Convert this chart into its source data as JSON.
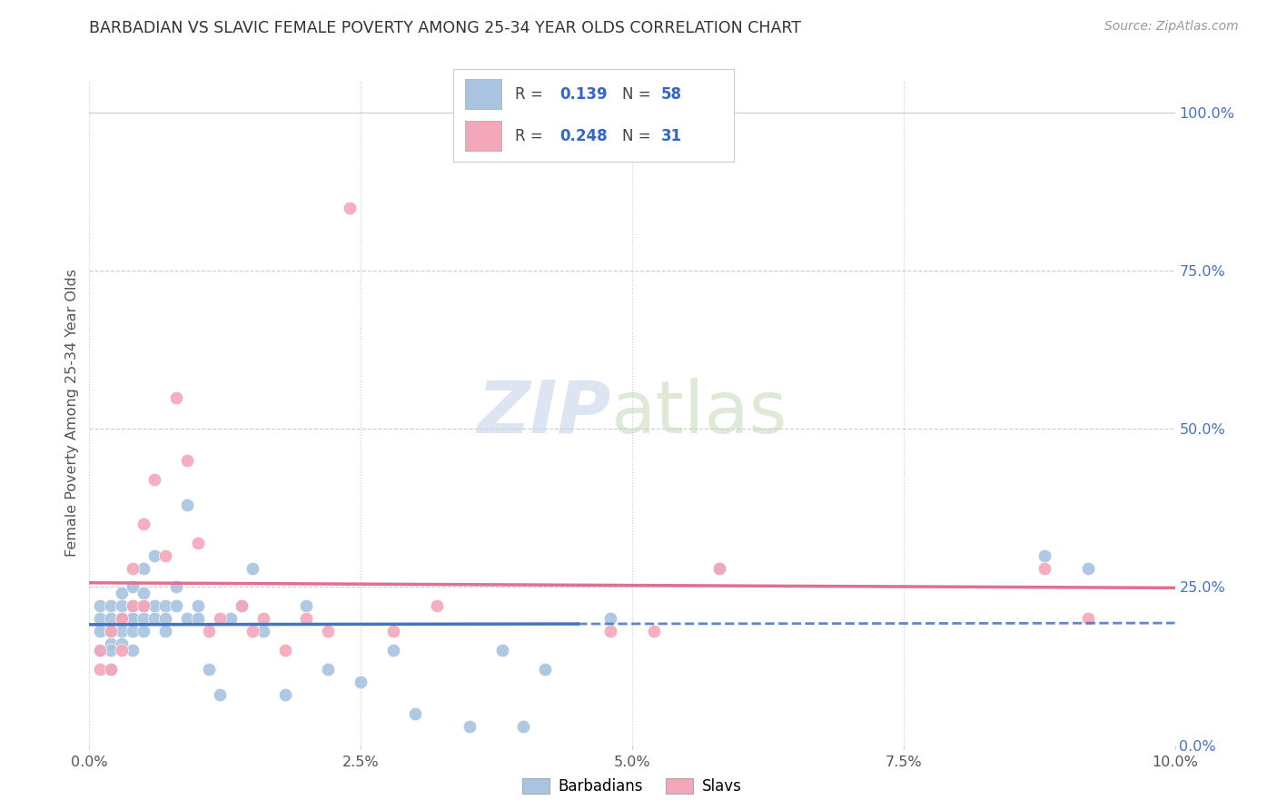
{
  "title": "BARBADIAN VS SLAVIC FEMALE POVERTY AMONG 25-34 YEAR OLDS CORRELATION CHART",
  "source": "Source: ZipAtlas.com",
  "ylabel": "Female Poverty Among 25-34 Year Olds",
  "xlim": [
    0.0,
    0.1
  ],
  "ylim": [
    0.0,
    1.05
  ],
  "right_ytick_labels": [
    "0.0%",
    "25.0%",
    "50.0%",
    "75.0%",
    "100.0%"
  ],
  "right_ytick_values": [
    0.0,
    0.25,
    0.5,
    0.75,
    1.0
  ],
  "xtick_labels": [
    "0.0%",
    "2.5%",
    "5.0%",
    "7.5%",
    "10.0%"
  ],
  "xtick_values": [
    0.0,
    0.025,
    0.05,
    0.075,
    0.1
  ],
  "barbadians_color": "#a8c4e0",
  "slavs_color": "#f4a7b9",
  "barbadians_line_color": "#4472c4",
  "slavs_line_color": "#e07090",
  "barbadians_x": [
    0.001,
    0.001,
    0.001,
    0.001,
    0.002,
    0.002,
    0.002,
    0.002,
    0.002,
    0.002,
    0.003,
    0.003,
    0.003,
    0.003,
    0.003,
    0.004,
    0.004,
    0.004,
    0.004,
    0.004,
    0.004,
    0.005,
    0.005,
    0.005,
    0.005,
    0.005,
    0.006,
    0.006,
    0.006,
    0.007,
    0.007,
    0.007,
    0.008,
    0.008,
    0.009,
    0.009,
    0.01,
    0.01,
    0.011,
    0.012,
    0.013,
    0.014,
    0.015,
    0.016,
    0.018,
    0.02,
    0.022,
    0.025,
    0.028,
    0.03,
    0.035,
    0.038,
    0.04,
    0.042,
    0.048,
    0.058,
    0.088,
    0.092
  ],
  "barbadians_y": [
    0.18,
    0.2,
    0.22,
    0.15,
    0.16,
    0.18,
    0.22,
    0.2,
    0.15,
    0.12,
    0.2,
    0.22,
    0.18,
    0.24,
    0.16,
    0.2,
    0.22,
    0.18,
    0.25,
    0.15,
    0.2,
    0.22,
    0.18,
    0.2,
    0.24,
    0.28,
    0.2,
    0.3,
    0.22,
    0.22,
    0.2,
    0.18,
    0.22,
    0.25,
    0.2,
    0.38,
    0.2,
    0.22,
    0.12,
    0.08,
    0.2,
    0.22,
    0.28,
    0.18,
    0.08,
    0.22,
    0.12,
    0.1,
    0.15,
    0.05,
    0.03,
    0.15,
    0.03,
    0.12,
    0.2,
    0.28,
    0.3,
    0.28
  ],
  "slavs_x": [
    0.001,
    0.001,
    0.002,
    0.002,
    0.003,
    0.003,
    0.004,
    0.004,
    0.005,
    0.005,
    0.006,
    0.007,
    0.008,
    0.009,
    0.01,
    0.011,
    0.012,
    0.014,
    0.015,
    0.016,
    0.018,
    0.02,
    0.022,
    0.024,
    0.028,
    0.032,
    0.048,
    0.052,
    0.058,
    0.088,
    0.092
  ],
  "slavs_y": [
    0.12,
    0.15,
    0.12,
    0.18,
    0.15,
    0.2,
    0.22,
    0.28,
    0.35,
    0.22,
    0.42,
    0.3,
    0.55,
    0.45,
    0.32,
    0.18,
    0.2,
    0.22,
    0.18,
    0.2,
    0.15,
    0.2,
    0.18,
    0.85,
    0.18,
    0.22,
    0.18,
    0.18,
    0.28,
    0.28,
    0.2
  ],
  "barb_line_solid_end": 0.045,
  "grid_color": "#cccccc",
  "grid_h_style": "--",
  "grid_v_style": ":"
}
